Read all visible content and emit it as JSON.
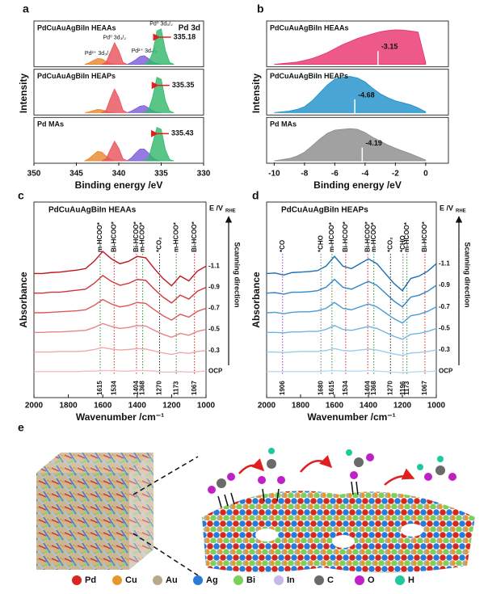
{
  "chart_data": [
    {
      "type": "area",
      "panel": "a",
      "xlabel": "Binding energy /eV",
      "ylabel": "Intensity",
      "note": "Pd 3d",
      "xlim": [
        350,
        330
      ],
      "xticks": [
        350,
        345,
        340,
        335,
        330
      ],
      "ylim": [
        0,
        1
      ],
      "marker_style": "arrow",
      "subplots": [
        {
          "title": "PdCuAuAgBiIn HEAAs",
          "title_color": "#e0202a",
          "marker": 335.18,
          "series": [
            {
              "name": "Pd²⁺ 3d₃/₂",
              "color": "#e8862a",
              "x": [
                344,
                343.5,
                343,
                342.5,
                342,
                341.5,
                341,
                340.5
              ],
              "values": [
                0,
                0.04,
                0.1,
                0.15,
                0.14,
                0.08,
                0.03,
                0
              ]
            },
            {
              "name": "Pd⁰ 3d₃/₂",
              "color": "#e8505a",
              "x": [
                342,
                341.5,
                341,
                340.5,
                340,
                339.5,
                339
              ],
              "values": [
                0,
                0.05,
                0.3,
                0.55,
                0.35,
                0.05,
                0
              ]
            },
            {
              "name": "Pd²⁺ 3d₅/₂",
              "color": "#7a5ad8",
              "x": [
                339,
                338.5,
                338,
                337.5,
                337,
                336.5,
                336,
                335.5,
                335
              ],
              "values": [
                0,
                0.05,
                0.12,
                0.2,
                0.22,
                0.15,
                0.06,
                0.02,
                0
              ]
            },
            {
              "name": "Pd⁰ 3d₅/₂",
              "color": "#2fb86a",
              "x": [
                337,
                336.5,
                336,
                335.5,
                335,
                334.5,
                334,
                333.5
              ],
              "values": [
                0,
                0.05,
                0.3,
                0.85,
                0.9,
                0.35,
                0.05,
                0
              ]
            }
          ]
        },
        {
          "title": "PdCuAuAgBiIn HEAPs",
          "title_color": "#1f8fd8",
          "marker": 335.35,
          "series": [
            {
              "color": "#e8862a",
              "x": [
                344,
                343.5,
                343,
                342.5,
                342,
                341.5,
                341,
                340.5
              ],
              "values": [
                0,
                0.02,
                0.05,
                0.08,
                0.07,
                0.04,
                0.01,
                0
              ]
            },
            {
              "color": "#e8505a",
              "x": [
                342,
                341.5,
                341,
                340.5,
                340,
                339.5,
                339
              ],
              "values": [
                0,
                0.06,
                0.35,
                0.6,
                0.38,
                0.06,
                0
              ]
            },
            {
              "color": "#7a5ad8",
              "x": [
                339,
                338.5,
                338,
                337.5,
                337,
                336.5,
                336,
                335.5,
                335
              ],
              "values": [
                0,
                0.04,
                0.1,
                0.16,
                0.18,
                0.12,
                0.05,
                0.01,
                0
              ]
            },
            {
              "color": "#2fb86a",
              "x": [
                337,
                336.5,
                336,
                335.5,
                335,
                334.5,
                334,
                333.5
              ],
              "values": [
                0,
                0.06,
                0.4,
                0.9,
                0.85,
                0.3,
                0.04,
                0
              ]
            }
          ]
        },
        {
          "title": "Pd MAs",
          "title_color": "#222222",
          "marker": 335.43,
          "series": [
            {
              "color": "#e8862a",
              "x": [
                344,
                343.5,
                343,
                342.5,
                342,
                341.5,
                341,
                340.5
              ],
              "values": [
                0,
                0.06,
                0.15,
                0.24,
                0.22,
                0.12,
                0.04,
                0
              ]
            },
            {
              "color": "#e8505a",
              "x": [
                342,
                341.5,
                341,
                340.5,
                340,
                339.5,
                339
              ],
              "values": [
                0,
                0.05,
                0.28,
                0.5,
                0.32,
                0.05,
                0
              ]
            },
            {
              "color": "#7a5ad8",
              "x": [
                339,
                338.5,
                338,
                337.5,
                337,
                336.5,
                336,
                335.5,
                335
              ],
              "values": [
                0,
                0.08,
                0.2,
                0.3,
                0.3,
                0.2,
                0.08,
                0.02,
                0
              ]
            },
            {
              "color": "#2fb86a",
              "x": [
                337,
                336.5,
                336,
                335.5,
                335,
                334.5,
                334,
                333.5
              ],
              "values": [
                0,
                0.06,
                0.45,
                0.85,
                0.8,
                0.28,
                0.03,
                0
              ]
            }
          ]
        }
      ]
    },
    {
      "type": "area",
      "panel": "b",
      "xlabel": "Binding energy /eV",
      "ylabel": "Intensity",
      "xlim": [
        -10.5,
        1.5
      ],
      "xticks": [
        -10,
        -8,
        -6,
        -4,
        -2,
        0
      ],
      "ylim": [
        0,
        1
      ],
      "marker_style": "line",
      "x": [
        -10,
        -9.5,
        -9,
        -8.5,
        -8,
        -7.5,
        -7,
        -6.5,
        -6,
        -5.5,
        -5,
        -4.5,
        -4,
        -3.5,
        -3,
        -2.5,
        -2,
        -1.5,
        -1,
        -0.5,
        0
      ],
      "subplots": [
        {
          "title": "PdCuAuAgBiIn HEAAs",
          "title_color": "#e0202a",
          "marker": -3.15,
          "series": [
            {
              "color": "#e8306a",
              "values": [
                0,
                0.02,
                0.04,
                0.06,
                0.1,
                0.15,
                0.22,
                0.3,
                0.4,
                0.5,
                0.58,
                0.66,
                0.72,
                0.78,
                0.83,
                0.86,
                0.88,
                0.87,
                0.85,
                0.82,
                0.05
              ]
            }
          ]
        },
        {
          "title": "PdCuAuAgBiIn HEAPs",
          "title_color": "#1f8fd8",
          "marker": -4.68,
          "series": [
            {
              "color": "#1b8fc8",
              "values": [
                0,
                0.02,
                0.04,
                0.08,
                0.15,
                0.3,
                0.5,
                0.7,
                0.85,
                0.9,
                0.92,
                0.88,
                0.78,
                0.62,
                0.48,
                0.38,
                0.3,
                0.25,
                0.2,
                0.12,
                0.02
              ]
            }
          ]
        },
        {
          "title": "Pd MAs",
          "title_color": "#222222",
          "marker": -4.19,
          "series": [
            {
              "color": "#8a8a8a",
              "values": [
                0,
                0.03,
                0.06,
                0.12,
                0.22,
                0.38,
                0.55,
                0.7,
                0.78,
                0.8,
                0.82,
                0.8,
                0.72,
                0.6,
                0.5,
                0.4,
                0.32,
                0.25,
                0.18,
                0.1,
                0.02
              ]
            }
          ]
        }
      ]
    },
    {
      "type": "line",
      "panel": "c",
      "title": "PdCuAuAgBiIn HEAAs",
      "title_color": "#e0202a",
      "xlabel": "Wavenumber /cm⁻¹",
      "ylabel": "Absorbance",
      "potential_label": "E /V",
      "potential_sub": "RHE",
      "direction_label": "Scanning direction",
      "xlim": [
        2000,
        1000
      ],
      "xticks": [
        2000,
        1800,
        1600,
        1400,
        1200,
        1000
      ],
      "ylim": [
        -0.3,
        2.7
      ],
      "x": [
        2000,
        1950,
        1900,
        1850,
        1800,
        1750,
        1700,
        1650,
        1600,
        1550,
        1500,
        1450,
        1400,
        1350,
        1300,
        1250,
        1200,
        1150,
        1100,
        1050,
        1000
      ],
      "series": [
        {
          "name": "-1.1",
          "color": "#c0141e",
          "values": [
            2,
            2,
            2.02,
            2.03,
            2.05,
            2.07,
            2.1,
            2.25,
            2.45,
            2.3,
            2.2,
            2.25,
            2.35,
            2.32,
            2.1,
            1.9,
            1.75,
            1.95,
            1.85,
            2.05,
            2.15
          ]
        },
        {
          "name": "-0.9",
          "color": "#d0343a",
          "values": [
            1.6,
            1.6,
            1.62,
            1.62,
            1.64,
            1.66,
            1.68,
            1.8,
            1.96,
            1.84,
            1.76,
            1.8,
            1.88,
            1.86,
            1.68,
            1.52,
            1.4,
            1.56,
            1.48,
            1.64,
            1.72
          ]
        },
        {
          "name": "-0.7",
          "color": "#dc5a5c",
          "values": [
            1.2,
            1.2,
            1.21,
            1.22,
            1.23,
            1.24,
            1.26,
            1.35,
            1.47,
            1.38,
            1.32,
            1.35,
            1.41,
            1.39,
            1.26,
            1.14,
            1.05,
            1.17,
            1.11,
            1.23,
            1.29
          ]
        },
        {
          "name": "-0.5",
          "color": "#e68486",
          "values": [
            0.8,
            0.8,
            0.81,
            0.81,
            0.82,
            0.83,
            0.84,
            0.9,
            0.98,
            0.92,
            0.88,
            0.9,
            0.94,
            0.93,
            0.84,
            0.76,
            0.7,
            0.78,
            0.74,
            0.82,
            0.86
          ]
        },
        {
          "name": "-0.3",
          "color": "#eeaaab",
          "values": [
            0.4,
            0.4,
            0.4,
            0.41,
            0.41,
            0.41,
            0.42,
            0.45,
            0.49,
            0.46,
            0.44,
            0.45,
            0.47,
            0.46,
            0.42,
            0.38,
            0.35,
            0.39,
            0.37,
            0.41,
            0.43
          ]
        },
        {
          "name": "OCP",
          "color": "#f0bcbc",
          "values": [
            0,
            0,
            0,
            0,
            0,
            0,
            0.01,
            0.01,
            0.02,
            0.02,
            0.01,
            0.01,
            0.02,
            0.02,
            0.01,
            -0.01,
            -0.01,
            0,
            -0.01,
            0,
            0.01
          ]
        }
      ],
      "markers": [
        {
          "x": 1615,
          "label": "m-HCOO*",
          "color": "#2a8a2a"
        },
        {
          "x": 1534,
          "label": "Bi-HCOO*",
          "color": "#d42020"
        },
        {
          "x": 1404,
          "label": "Bi-HCOO*",
          "color": "#d42020"
        },
        {
          "x": 1368,
          "label": "m-HCOO*",
          "color": "#2a8a2a"
        },
        {
          "x": 1270,
          "label": "*CO₂",
          "color": "#222222"
        },
        {
          "x": 1173,
          "label": "m-HCOO*",
          "color": "#2a8a2a"
        },
        {
          "x": 1067,
          "label": "Bi-HCOO*",
          "color": "#d42020"
        }
      ]
    },
    {
      "type": "line",
      "panel": "d",
      "title": "PdCuAuAgBiIn HEAPs",
      "title_color": "#1f8fd8",
      "xlabel": "Wavenumber /cm⁻¹",
      "ylabel": "Absorbance",
      "potential_label": "E /V",
      "potential_sub": "RHE",
      "direction_label": "Scanning direction",
      "xlim": [
        2000,
        1000
      ],
      "xticks": [
        2000,
        1800,
        1600,
        1400,
        1200,
        1000
      ],
      "ylim": [
        -0.3,
        2.7
      ],
      "x": [
        2000,
        1950,
        1900,
        1850,
        1800,
        1750,
        1700,
        1650,
        1600,
        1550,
        1500,
        1450,
        1400,
        1350,
        1300,
        1250,
        1200,
        1150,
        1100,
        1050,
        1000
      ],
      "series": [
        {
          "name": "-1.1",
          "color": "#1a6fb5",
          "values": [
            2,
            2.01,
            1.97,
            2.02,
            2.03,
            2.04,
            2.06,
            2.15,
            2.35,
            2.15,
            2.1,
            2.2,
            2.3,
            2.2,
            2,
            1.8,
            1.65,
            1.9,
            1.95,
            2.05,
            2.2
          ]
        },
        {
          "name": "-0.9",
          "color": "#2e86c8",
          "values": [
            1.6,
            1.61,
            1.58,
            1.62,
            1.62,
            1.63,
            1.65,
            1.72,
            1.88,
            1.72,
            1.68,
            1.76,
            1.84,
            1.76,
            1.6,
            1.44,
            1.32,
            1.52,
            1.56,
            1.64,
            1.76
          ]
        },
        {
          "name": "-0.7",
          "color": "#4a9dd4",
          "values": [
            1.2,
            1.21,
            1.18,
            1.21,
            1.22,
            1.22,
            1.24,
            1.29,
            1.41,
            1.29,
            1.26,
            1.32,
            1.38,
            1.32,
            1.2,
            1.08,
            0.99,
            1.14,
            1.17,
            1.23,
            1.32
          ]
        },
        {
          "name": "-0.5",
          "color": "#70b4df",
          "values": [
            0.8,
            0.8,
            0.79,
            0.81,
            0.81,
            0.82,
            0.82,
            0.86,
            0.94,
            0.86,
            0.84,
            0.88,
            0.92,
            0.88,
            0.8,
            0.72,
            0.66,
            0.76,
            0.78,
            0.82,
            0.88
          ]
        },
        {
          "name": "-0.3",
          "color": "#9cccea",
          "values": [
            0.4,
            0.4,
            0.39,
            0.4,
            0.41,
            0.41,
            0.41,
            0.43,
            0.47,
            0.43,
            0.42,
            0.44,
            0.46,
            0.44,
            0.4,
            0.36,
            0.33,
            0.38,
            0.39,
            0.41,
            0.44
          ]
        },
        {
          "name": "OCP",
          "color": "#b8daf0",
          "values": [
            0,
            0,
            0,
            0,
            0,
            0,
            0,
            0.01,
            0.02,
            0.01,
            0.01,
            0.01,
            0.02,
            0.01,
            0,
            -0.01,
            -0.02,
            -0.01,
            0,
            0,
            0.01
          ]
        }
      ],
      "markers": [
        {
          "x": 1906,
          "label": "*CO",
          "color": "#9b30d0"
        },
        {
          "x": 1680,
          "label": "*CHO",
          "color": "#777777"
        },
        {
          "x": 1615,
          "label": "m-HCOO*",
          "color": "#2a8a2a"
        },
        {
          "x": 1534,
          "label": "Bi-HCOO*",
          "color": "#d42020"
        },
        {
          "x": 1404,
          "label": "Bi-HCOO*",
          "color": "#d42020"
        },
        {
          "x": 1368,
          "label": "m-HCOO*",
          "color": "#2a8a2a"
        },
        {
          "x": 1270,
          "label": "*CO₂",
          "color": "#222222"
        },
        {
          "x": 1196,
          "label": "*CHO",
          "color": "#777777"
        },
        {
          "x": 1173,
          "label": "m-HCOO*",
          "color": "#2a8a2a"
        },
        {
          "x": 1067,
          "label": "Bi-HCOO*",
          "color": "#d42020"
        }
      ]
    }
  ],
  "panel_e": {
    "label": "e",
    "legend": [
      {
        "label": "Pd",
        "color": "#d8281e"
      },
      {
        "label": "Cu",
        "color": "#e8962a"
      },
      {
        "label": "Au",
        "color": "#b8a88a"
      },
      {
        "label": "Ag",
        "color": "#2a7ad8"
      },
      {
        "label": "Bi",
        "color": "#7ad05a"
      },
      {
        "label": "In",
        "color": "#c8b8e8"
      },
      {
        "label": "C",
        "color": "#6a6a6a"
      },
      {
        "label": "O",
        "color": "#c020c8"
      },
      {
        "label": "H",
        "color": "#20c8a0"
      }
    ]
  }
}
